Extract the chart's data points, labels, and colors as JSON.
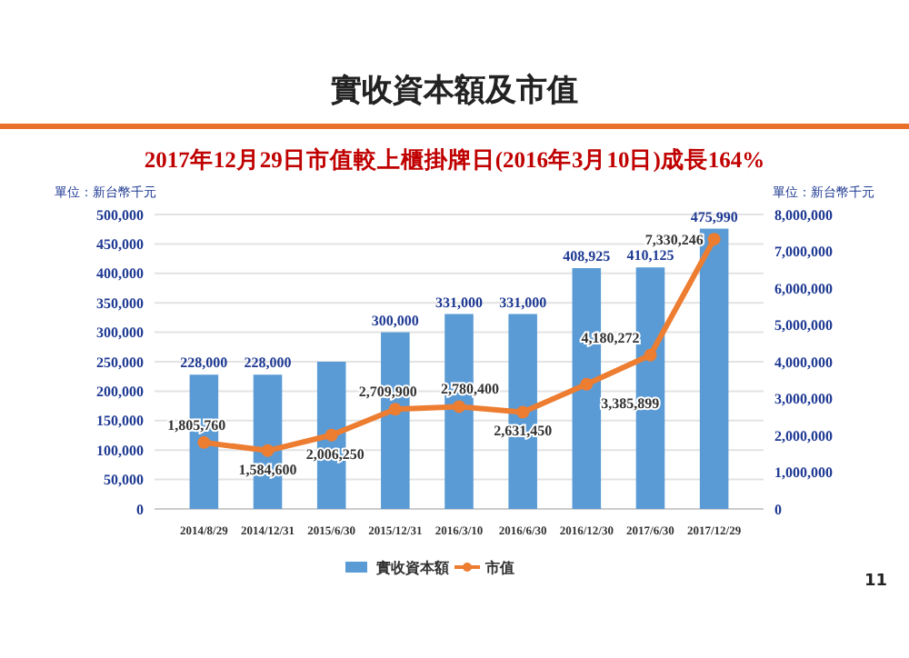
{
  "chart_data": {
    "type": "bar",
    "title": "實收資本額及市值",
    "subtitle": "2017年12月29日市值較上櫃掛牌日(2016年3月10日)成長164%",
    "categories": [
      "2014/8/29",
      "2014/12/31",
      "2015/6/30",
      "2015/12/31",
      "2016/3/10",
      "2016/6/30",
      "2016/12/30",
      "2017/6/30",
      "2017/12/29"
    ],
    "series": [
      {
        "name": "實收資本額",
        "color": "#5b9bd5",
        "values": [
          228000,
          228000,
          250000,
          300000,
          331000,
          331000,
          408925,
          410125,
          475990
        ],
        "value_labels": [
          "228,000",
          "228,000",
          null,
          "300,000",
          "331,000",
          "331,000",
          "408,925",
          "410,125",
          "475,990"
        ]
      },
      {
        "name": "市值",
        "type": "line",
        "axis": "y2",
        "color": "#ed7d31",
        "values": [
          1805760,
          1584600,
          2006250,
          2709900,
          2780400,
          2631450,
          3385899,
          4180272,
          7330246
        ],
        "value_labels": [
          "1,805,760",
          "1,584,600",
          "2,006,250",
          "2,709,900",
          "2,780,400",
          "2,631,450",
          "3,385,899",
          "4,180,272",
          "7,330,246"
        ]
      }
    ],
    "ylim": [
      0,
      500000
    ],
    "yticks": [
      {
        "value": 0,
        "label": "0"
      },
      {
        "value": 50000,
        "label": "50,000"
      },
      {
        "value": 100000,
        "label": "100,000"
      },
      {
        "value": 150000,
        "label": "150,000"
      },
      {
        "value": 200000,
        "label": "200,000"
      },
      {
        "value": 250000,
        "label": "250,000"
      },
      {
        "value": 300000,
        "label": "300,000"
      },
      {
        "value": 350000,
        "label": "350,000"
      },
      {
        "value": 400000,
        "label": "400,000"
      },
      {
        "value": 450000,
        "label": "450,000"
      },
      {
        "value": 500000,
        "label": "500,000"
      }
    ],
    "y2lim": [
      0,
      8000000
    ],
    "y2ticks": [
      {
        "value": 0,
        "label": "0"
      },
      {
        "value": 1000000,
        "label": "1,000,000"
      },
      {
        "value": 2000000,
        "label": "2,000,000"
      },
      {
        "value": 3000000,
        "label": "3,000,000"
      },
      {
        "value": 4000000,
        "label": "4,000,000"
      },
      {
        "value": 5000000,
        "label": "5,000,000"
      },
      {
        "value": 6000000,
        "label": "6,000,000"
      },
      {
        "value": 7000000,
        "label": "7,000,000"
      },
      {
        "value": 8000000,
        "label": "8,000,000"
      }
    ],
    "ylabel": "單位：新台幣千元",
    "y2label": "單位：新台幣千元",
    "grid": "y",
    "legend": "bottom",
    "marker": "circle",
    "annotations": [
      "11"
    ]
  }
}
